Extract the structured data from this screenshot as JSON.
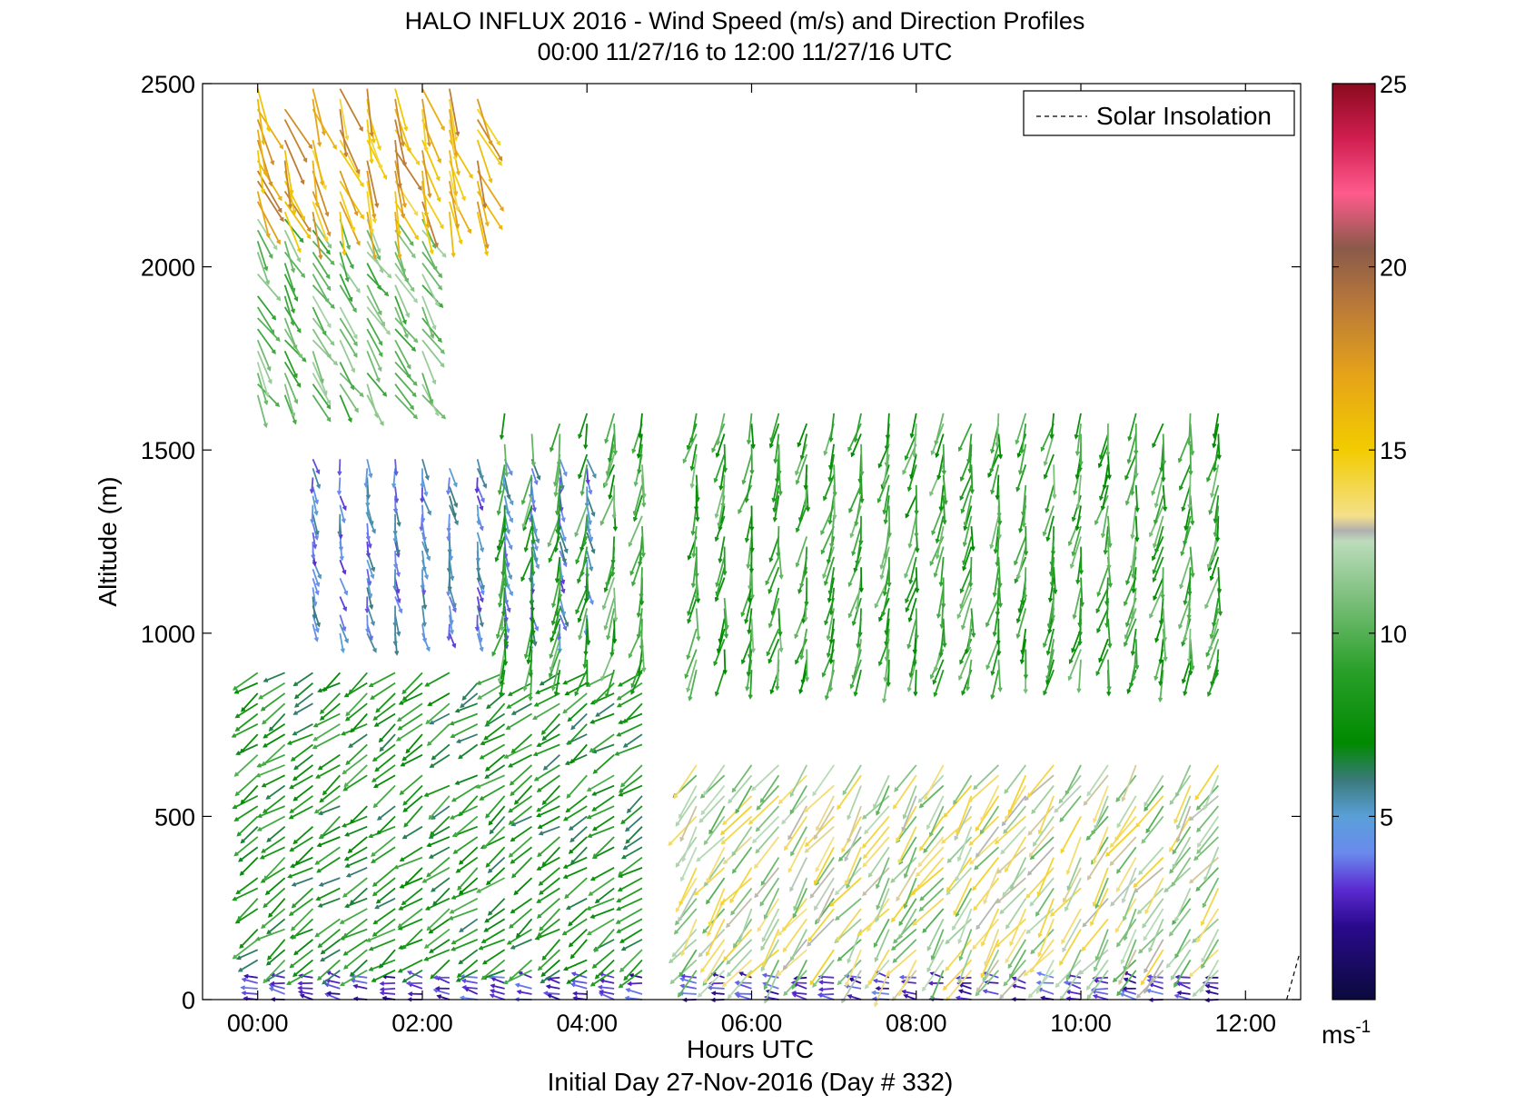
{
  "chart_data": {
    "type": "quiver",
    "title": "HALO INFLUX 2016 - Wind Speed (m/s) and Direction Profiles",
    "subtitle": "00:00 11/27/16 to 12:00 11/27/16  UTC",
    "xlabel": "Hours UTC",
    "xlabel2": "Initial Day 27-Nov-2016 (Day # 332)",
    "ylabel": "Altitude (m)",
    "xlim": [
      -0.67,
      12.67
    ],
    "ylim": [
      0,
      2500
    ],
    "x_ticks": [
      0,
      2,
      4,
      6,
      8,
      10,
      12
    ],
    "x_tick_labels": [
      "00:00",
      "02:00",
      "04:00",
      "06:00",
      "08:00",
      "10:00",
      "12:00"
    ],
    "y_ticks": [
      0,
      500,
      1000,
      1500,
      2000,
      2500
    ],
    "y_tick_labels": [
      "0",
      "500",
      "1000",
      "1500",
      "2000",
      "2500"
    ],
    "grid": false,
    "legend": {
      "position": "top-right",
      "entries": [
        "Solar Insolation"
      ]
    },
    "colorbar": {
      "range": [
        0,
        25
      ],
      "ticks": [
        5,
        10,
        15,
        20,
        25
      ],
      "tick_labels": [
        "5",
        "10",
        "15",
        "20",
        "25"
      ],
      "unit_base": "ms",
      "unit_exp": "-1",
      "stops": [
        {
          "v": 0,
          "c": "#0a0a3c"
        },
        {
          "v": 2,
          "c": "#2a0a8c"
        },
        {
          "v": 3,
          "c": "#5a2ad0"
        },
        {
          "v": 4,
          "c": "#6a8aee"
        },
        {
          "v": 5,
          "c": "#5aa0d8"
        },
        {
          "v": 6,
          "c": "#3a7a7a"
        },
        {
          "v": 7,
          "c": "#008a00"
        },
        {
          "v": 9,
          "c": "#2aa02a"
        },
        {
          "v": 11,
          "c": "#7ec07e"
        },
        {
          "v": 12.5,
          "c": "#bcdcbc"
        },
        {
          "v": 12.8,
          "c": "#b0b0b0"
        },
        {
          "v": 13.2,
          "c": "#f4e08a"
        },
        {
          "v": 15,
          "c": "#f2cc00"
        },
        {
          "v": 17,
          "c": "#e6a418"
        },
        {
          "v": 19,
          "c": "#b8783a"
        },
        {
          "v": 20.5,
          "c": "#8a5a4a"
        },
        {
          "v": 22,
          "c": "#ff5a8c"
        },
        {
          "v": 23.5,
          "c": "#d01e50"
        },
        {
          "v": 25,
          "c": "#8a0a1e"
        }
      ]
    },
    "profile_times_hours": [
      0.0,
      0.33,
      0.67,
      1.0,
      1.33,
      1.67,
      2.0,
      2.33,
      2.67,
      3.0,
      3.33,
      3.67,
      4.0,
      4.33,
      4.67,
      5.33,
      5.67,
      6.0,
      6.33,
      6.67,
      7.0,
      7.33,
      7.67,
      8.0,
      8.33,
      8.67,
      9.0,
      9.33,
      9.67,
      10.0,
      10.33,
      10.67,
      11.0,
      11.33,
      11.67
    ],
    "layers": [
      {
        "name": "surface",
        "t_range": [
          0,
          11.7
        ],
        "z_range": [
          0,
          70
        ],
        "dz": 15,
        "direction_deg": 170,
        "speed_range": [
          2,
          4
        ]
      },
      {
        "name": "boundary_layer_early",
        "t_range": [
          0,
          4.8
        ],
        "z_range": [
          80,
          900
        ],
        "dz": 28,
        "direction_deg": 215,
        "speed_range": [
          6,
          10
        ]
      },
      {
        "name": "boundary_layer_late",
        "t_range": [
          5.3,
          11.7
        ],
        "z_range": [
          80,
          650
        ],
        "dz": 28,
        "direction_deg": 235,
        "speed_range": [
          10,
          14.5
        ]
      },
      {
        "name": "low_jet_core",
        "t_range": [
          0.5,
          4.0
        ],
        "z_range": [
          1000,
          1480
        ],
        "dz": 25,
        "direction_deg": 280,
        "speed_range": [
          3,
          6
        ]
      },
      {
        "name": "mid_layer",
        "t_range": [
          3.0,
          11.7
        ],
        "z_range": [
          900,
          1600
        ],
        "dz": 28,
        "direction_deg": 260,
        "speed_range": [
          7,
          11
        ]
      },
      {
        "name": "upper_green",
        "t_range": [
          0,
          2.1
        ],
        "z_range": [
          1650,
          2150
        ],
        "dz": 30,
        "direction_deg": 300,
        "speed_range": [
          9,
          12
        ]
      },
      {
        "name": "upper_yellow",
        "t_range": [
          0,
          2.8
        ],
        "z_range": [
          2150,
          2500
        ],
        "dz": 28,
        "direction_deg": 290,
        "speed_range": [
          14,
          19
        ]
      }
    ]
  }
}
